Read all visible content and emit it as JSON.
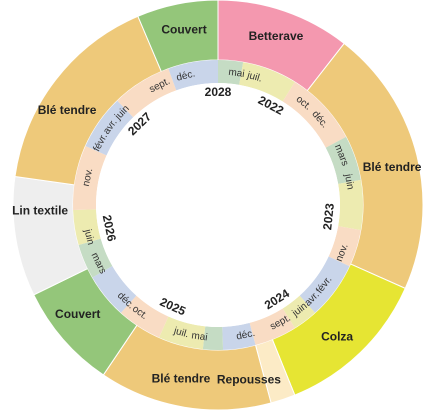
{
  "colors": {
    "betterave": "#F498AF",
    "ble": "#EEC97A",
    "colza": "#E6E533",
    "repousses": "#FCEBC6",
    "couvert": "#94C67A",
    "lin": "#EEEEEE",
    "ring_beige": "#F9DCC4",
    "ring_yellow": "#EDEBB0",
    "ring_green": "#C5DCC4",
    "ring_blue": "#C9D5EA"
  },
  "crops": [
    {
      "label": "Betterave",
      "color": "#F498AF",
      "start": 0,
      "end": 38
    },
    {
      "label": "Blé tendre",
      "color": "#EEC97A",
      "start": 38,
      "end": 114
    },
    {
      "label": "Colza",
      "color": "#E6E533",
      "start": 114,
      "end": 158
    },
    {
      "label": "Repousses",
      "color": "#FCEBC6",
      "start": 158,
      "end": 165
    },
    {
      "label": "Blé tendre",
      "color": "#EEC97A",
      "start": 165,
      "end": 214
    },
    {
      "label": "Couvert",
      "color": "#94C67A",
      "start": 214,
      "end": 244
    },
    {
      "label": "Lin textile",
      "color": "#EEEEEE",
      "start": 244,
      "end": 278
    },
    {
      "label": "Blé tendre",
      "color": "#EEC97A",
      "start": 278,
      "end": 337
    },
    {
      "label": "Couvert",
      "color": "#94C67A",
      "start": 337,
      "end": 360
    }
  ],
  "crop_label_positions": [
    {
      "label": "Betterave",
      "angle": 19
    },
    {
      "label": "Blé tendre",
      "angle": 78
    },
    {
      "label": "Colza",
      "angle": 138
    },
    {
      "label": "Repousses",
      "angle": 170
    },
    {
      "label": "Blé tendre",
      "angle": 192
    },
    {
      "label": "Couvert",
      "angle": 232
    },
    {
      "label": "Lin textile",
      "angle": 268
    },
    {
      "label": "Blé tendre",
      "angle": 302
    },
    {
      "label": "Couvert",
      "angle": 349
    }
  ],
  "month_ring": [
    {
      "color": "#C5DCC4",
      "start": 0,
      "end": 10
    },
    {
      "color": "#EDEBB0",
      "start": 10,
      "end": 32
    },
    {
      "color": "#F9DCC4",
      "start": 32,
      "end": 62
    },
    {
      "color": "#C5DCC4",
      "start": 62,
      "end": 80
    },
    {
      "color": "#EDEBB0",
      "start": 80,
      "end": 100
    },
    {
      "color": "#F9DCC4",
      "start": 100,
      "end": 115
    },
    {
      "color": "#C9D5EA",
      "start": 115,
      "end": 138
    },
    {
      "color": "#EDEBB0",
      "start": 138,
      "end": 148
    },
    {
      "color": "#F9DCC4",
      "start": 148,
      "end": 165
    },
    {
      "color": "#C9D5EA",
      "start": 165,
      "end": 178
    },
    {
      "color": "#C5DCC4",
      "start": 178,
      "end": 186
    },
    {
      "color": "#EDEBB0",
      "start": 186,
      "end": 204
    },
    {
      "color": "#F9DCC4",
      "start": 204,
      "end": 222
    },
    {
      "color": "#C9D5EA",
      "start": 222,
      "end": 240
    },
    {
      "color": "#C5DCC4",
      "start": 240,
      "end": 254
    },
    {
      "color": "#EDEBB0",
      "start": 254,
      "end": 268
    },
    {
      "color": "#F9DCC4",
      "start": 268,
      "end": 294
    },
    {
      "color": "#C9D5EA",
      "start": 294,
      "end": 316
    },
    {
      "color": "#F9DCC4",
      "start": 316,
      "end": 340
    },
    {
      "color": "#C9D5EA",
      "start": 340,
      "end": 360
    }
  ],
  "month_labels": [
    {
      "text": "mai",
      "angle": 8
    },
    {
      "text": "juil.",
      "angle": 16
    },
    {
      "text": "oct.",
      "angle": 40
    },
    {
      "text": "déc.",
      "angle": 50
    },
    {
      "text": "mars",
      "angle": 68
    },
    {
      "text": "juin",
      "angle": 80
    },
    {
      "text": "nov.",
      "angle": 111
    },
    {
      "text": "févr.",
      "angle": 127
    },
    {
      "text": "avr.",
      "angle": 135
    },
    {
      "text": "juin",
      "angle": 142
    },
    {
      "text": "sept.",
      "angle": 152
    },
    {
      "text": "déc.",
      "angle": 168
    },
    {
      "text": "mai",
      "angle": 188
    },
    {
      "text": "juil.",
      "angle": 196
    },
    {
      "text": "oct.",
      "angle": 216
    },
    {
      "text": "déc.",
      "angle": 224
    },
    {
      "text": "mars",
      "angle": 244
    },
    {
      "text": "juin",
      "angle": 256
    },
    {
      "text": "nov.",
      "angle": 282
    },
    {
      "text": "févr.",
      "angle": 298
    },
    {
      "text": "avr.",
      "angle": 306
    },
    {
      "text": "juin",
      "angle": 314
    },
    {
      "text": "sept.",
      "angle": 334
    },
    {
      "text": "déc.",
      "angle": 346
    }
  ],
  "years": [
    {
      "text": "2028",
      "angle": 0
    },
    {
      "text": "2022",
      "angle": 28
    },
    {
      "text": "2023",
      "angle": 96
    },
    {
      "text": "2024",
      "angle": 148
    },
    {
      "text": "2025",
      "angle": 204
    },
    {
      "text": "2026",
      "angle": 258
    },
    {
      "text": "2027",
      "angle": 316
    }
  ]
}
